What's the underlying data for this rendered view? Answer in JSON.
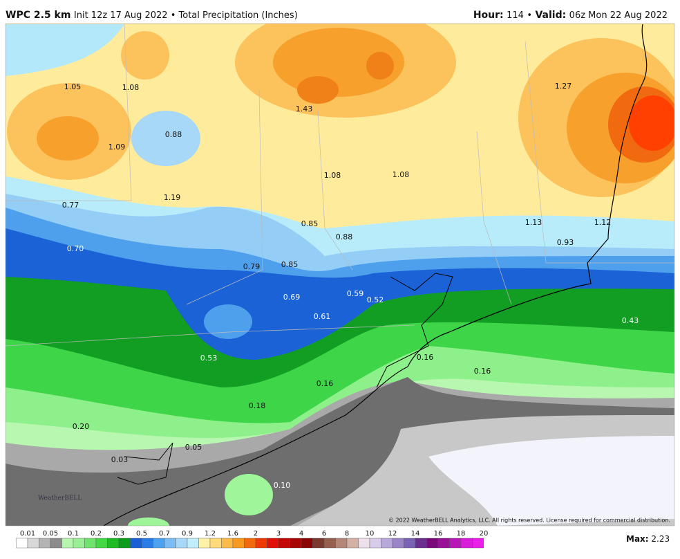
{
  "header": {
    "title": "WPC 2.5 km",
    "subtitle": "Init 12z 17 Aug 2022 • Total Precipitation (Inches)",
    "hour_label": "Hour:",
    "hour": "114",
    "separator": "•",
    "valid_label": "Valid:",
    "valid": "06z Mon 22 Aug 2022"
  },
  "map": {
    "labels": [
      "1.05",
      "1.08",
      "1.43",
      "1.27",
      "0.88",
      "1.09",
      "1.08",
      "1.08",
      "1.19",
      "0.77",
      "0.85",
      "0.88",
      "1.13",
      "1.12",
      "0.93",
      "0.70",
      "0.79",
      "0.85",
      "0.69",
      "0.59",
      "0.52",
      "0.61",
      "0.43",
      "0.53",
      "0.16",
      "0.16",
      "0.16",
      "0.18",
      "0.20",
      "0.05",
      "0.03",
      "0.10"
    ],
    "logo": "WeatherBELL",
    "copyright": "© 2022 WeatherBELL Analytics, LLC. All rights reserved. License required for commercial distribution."
  },
  "legend": {
    "labels": [
      "0.01",
      "0.05",
      "0.1",
      "0.2",
      "0.3",
      "0.5",
      "0.7",
      "0.9",
      "1.2",
      "1.6",
      "2",
      "3",
      "4",
      "6",
      "8",
      "10",
      "12",
      "14",
      "16",
      "18",
      "20"
    ],
    "max_label": "Max:",
    "max": "2.23"
  }
}
